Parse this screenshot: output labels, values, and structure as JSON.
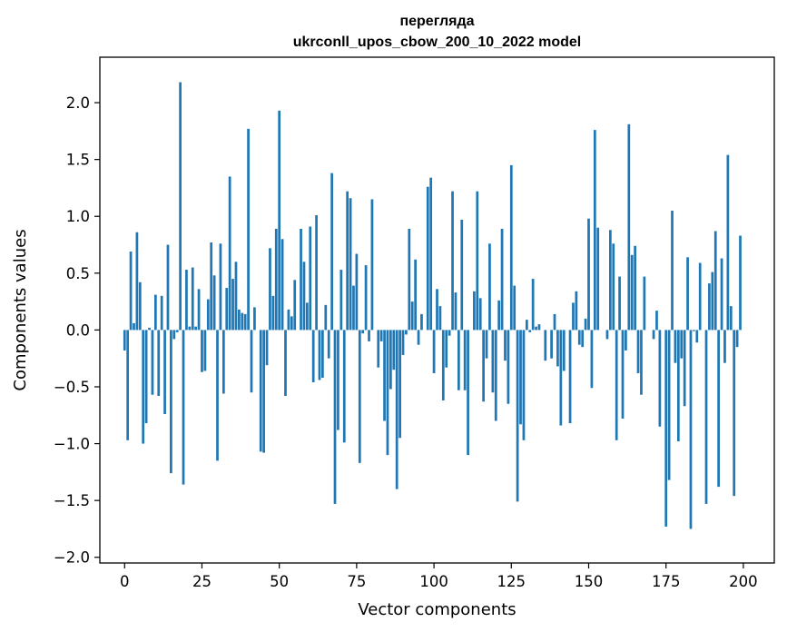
{
  "chart_data": {
    "type": "bar",
    "title_lines": [
      "перегляда",
      "ukrconll_upos_cbow_200_10_2022 model"
    ],
    "xlabel": "Vector components",
    "ylabel": "Components values",
    "xlim": [
      -8,
      210
    ],
    "ylim": [
      -2.05,
      2.4
    ],
    "xticks": [
      0,
      25,
      50,
      75,
      100,
      125,
      150,
      175,
      200
    ],
    "yticks": [
      -2.0,
      -1.5,
      -1.0,
      -0.5,
      0.0,
      0.5,
      1.0,
      1.5,
      2.0
    ],
    "ytick_labels": [
      "−2.0",
      "−1.5",
      "−1.0",
      "−0.5",
      "0.0",
      "0.5",
      "1.0",
      "1.5",
      "2.0"
    ],
    "bar_color": "#1f77b4",
    "grid": false,
    "values": [
      -0.18,
      -0.97,
      0.69,
      0.06,
      0.86,
      0.42,
      -1.0,
      -0.82,
      0.02,
      -0.57,
      0.31,
      -0.58,
      0.3,
      -0.74,
      0.75,
      -1.26,
      -0.08,
      -0.02,
      2.18,
      -1.36,
      0.53,
      0.03,
      0.55,
      0.03,
      0.36,
      -0.37,
      -0.36,
      0.27,
      0.77,
      0.48,
      -1.15,
      0.76,
      -0.56,
      0.37,
      1.35,
      0.45,
      0.6,
      0.18,
      0.15,
      0.14,
      1.77,
      -0.55,
      0.2,
      0.0,
      -1.07,
      -1.08,
      -0.31,
      0.72,
      0.3,
      0.89,
      1.93,
      0.8,
      -0.58,
      0.18,
      0.12,
      0.44,
      0.0,
      0.89,
      0.6,
      0.24,
      0.91,
      -0.46,
      1.01,
      -0.44,
      -0.42,
      0.22,
      -0.25,
      1.38,
      -1.53,
      -0.88,
      0.53,
      -0.99,
      1.22,
      1.16,
      0.39,
      0.67,
      -1.17,
      -0.03,
      0.57,
      -0.1,
      1.15,
      0.0,
      -0.33,
      -0.1,
      -0.8,
      -1.1,
      -0.52,
      -0.35,
      -1.4,
      -0.95,
      -0.22,
      -0.04,
      0.89,
      0.25,
      0.62,
      -0.13,
      0.14,
      0.0,
      1.26,
      1.34,
      -0.38,
      0.36,
      0.21,
      -0.62,
      -0.33,
      -0.05,
      1.22,
      0.33,
      -0.53,
      0.97,
      -0.53,
      -1.1,
      0.0,
      0.34,
      1.22,
      0.28,
      -0.63,
      -0.25,
      0.76,
      -0.55,
      -0.8,
      0.26,
      0.89,
      -0.27,
      -0.65,
      1.45,
      0.39,
      -1.51,
      -0.83,
      -0.97,
      0.09,
      -0.02,
      0.45,
      0.03,
      0.05,
      0.0,
      -0.27,
      0.0,
      -0.25,
      0.14,
      -0.32,
      -0.84,
      -0.36,
      0.0,
      -0.82,
      0.24,
      0.34,
      -0.13,
      -0.15,
      0.1,
      0.98,
      -0.51,
      1.76,
      0.9,
      0.0,
      0.0,
      -0.08,
      0.88,
      0.76,
      -0.97,
      0.47,
      -0.78,
      -0.18,
      1.81,
      0.66,
      0.74,
      -0.38,
      -0.57,
      0.47,
      0.0,
      0.0,
      -0.08,
      0.17,
      -0.85,
      0.0,
      -1.73,
      -1.32,
      1.05,
      -0.29,
      -0.98,
      -0.25,
      -0.67,
      0.64,
      -1.75,
      -0.01,
      -0.11,
      0.59,
      0.0,
      -1.53,
      0.41,
      0.51,
      0.87,
      -1.38,
      0.63,
      -0.29,
      1.54,
      0.21,
      -1.46,
      -0.15,
      0.83
    ]
  }
}
